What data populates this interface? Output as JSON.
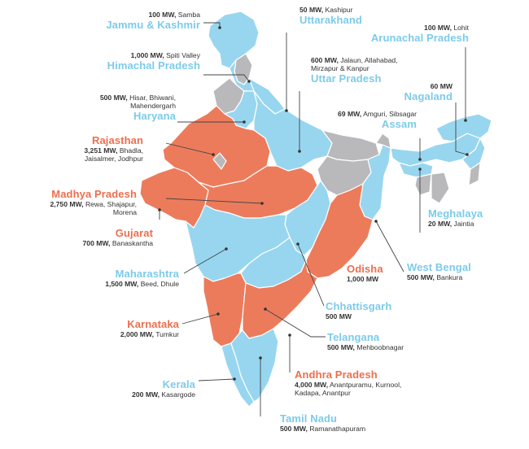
{
  "colors": {
    "allocated_blue": "#98d6ef",
    "allocated_orange": "#ec7b5c",
    "unallocated_grey": "#b9b9bc",
    "label_blue": "#7ccbe9",
    "label_orange": "#ec6f4f"
  },
  "states": [
    {
      "key": "jk",
      "name": "Jammu & Kashmir",
      "capacity": "100 MW,",
      "sites": [
        "Samba"
      ],
      "color": "blue"
    },
    {
      "key": "uk",
      "name": "Uttarakhand",
      "capacity": "50 MW,",
      "sites": [
        "Kashipur"
      ],
      "color": "blue"
    },
    {
      "key": "ar",
      "name": "Arunachal Pradesh",
      "capacity": "100 MW,",
      "sites": [
        "Lohit"
      ],
      "color": "blue"
    },
    {
      "key": "hp",
      "name": "Himachal Pradesh",
      "capacity": "1,000 MW,",
      "sites": [
        "Spiti Valley"
      ],
      "color": "blue"
    },
    {
      "key": "up",
      "name": "Uttar Pradesh",
      "capacity": "600 MW,",
      "sites": [
        "Jalaun, Allahabad,",
        "Mirzapur & Kanpur"
      ],
      "color": "blue"
    },
    {
      "key": "hr",
      "name": "Haryana",
      "capacity": "500 MW,",
      "sites": [
        "Hisar, Bhiwani,",
        "Mahendergarh"
      ],
      "color": "blue"
    },
    {
      "key": "nl",
      "name": "Nagaland",
      "capacity": "60 MW",
      "sites": [],
      "color": "blue"
    },
    {
      "key": "as",
      "name": "Assam",
      "capacity": "69 MW,",
      "sites": [
        "Amguri, Sibsagar"
      ],
      "color": "blue"
    },
    {
      "key": "rj",
      "name": "Rajasthan",
      "capacity": "3,251 MW,",
      "sites": [
        "Bhadla,",
        "Jaisalmer, Jodhpur"
      ],
      "color": "orange"
    },
    {
      "key": "mp",
      "name": "Madhya Pradesh",
      "capacity": "2,750 MW,",
      "sites": [
        "Rewa, Shajapur,",
        "Morena"
      ],
      "color": "orange"
    },
    {
      "key": "gj",
      "name": "Gujarat",
      "capacity": "700 MW,",
      "sites": [
        "Banaskantha"
      ],
      "color": "orange"
    },
    {
      "key": "ml",
      "name": "Meghalaya",
      "capacity": "20 MW,",
      "sites": [
        "Jaintia"
      ],
      "color": "blue"
    },
    {
      "key": "mh",
      "name": "Maharashtra",
      "capacity": "1,500 MW,",
      "sites": [
        "Beed, Dhule"
      ],
      "color": "blue"
    },
    {
      "key": "od",
      "name": "Odisha",
      "capacity": "1,000 MW",
      "sites": [],
      "color": "orange"
    },
    {
      "key": "wb",
      "name": "West Bengal",
      "capacity": "500 MW,",
      "sites": [
        "Bankura"
      ],
      "color": "blue"
    },
    {
      "key": "cg",
      "name": "Chhattisgarh",
      "capacity": "500 MW",
      "sites": [],
      "color": "blue"
    },
    {
      "key": "ka",
      "name": "Karnataka",
      "capacity": "2,000 MW,",
      "sites": [
        "Tumkur"
      ],
      "color": "orange"
    },
    {
      "key": "tg",
      "name": "Telangana",
      "capacity": "500 MW,",
      "sites": [
        "Mehboobnagar"
      ],
      "color": "blue"
    },
    {
      "key": "ap",
      "name": "Andhra Pradesh",
      "capacity": "4,000 MW,",
      "sites": [
        "Anantpuramu, Kurnool,",
        "Kadapa, Anantpur"
      ],
      "color": "orange"
    },
    {
      "key": "kl",
      "name": "Kerala",
      "capacity": "200 MW,",
      "sites": [
        "Kasargode"
      ],
      "color": "blue"
    },
    {
      "key": "tn",
      "name": "Tamil Nadu",
      "capacity": "500 MW,",
      "sites": [
        "Ramanathapuram"
      ],
      "color": "blue"
    }
  ]
}
